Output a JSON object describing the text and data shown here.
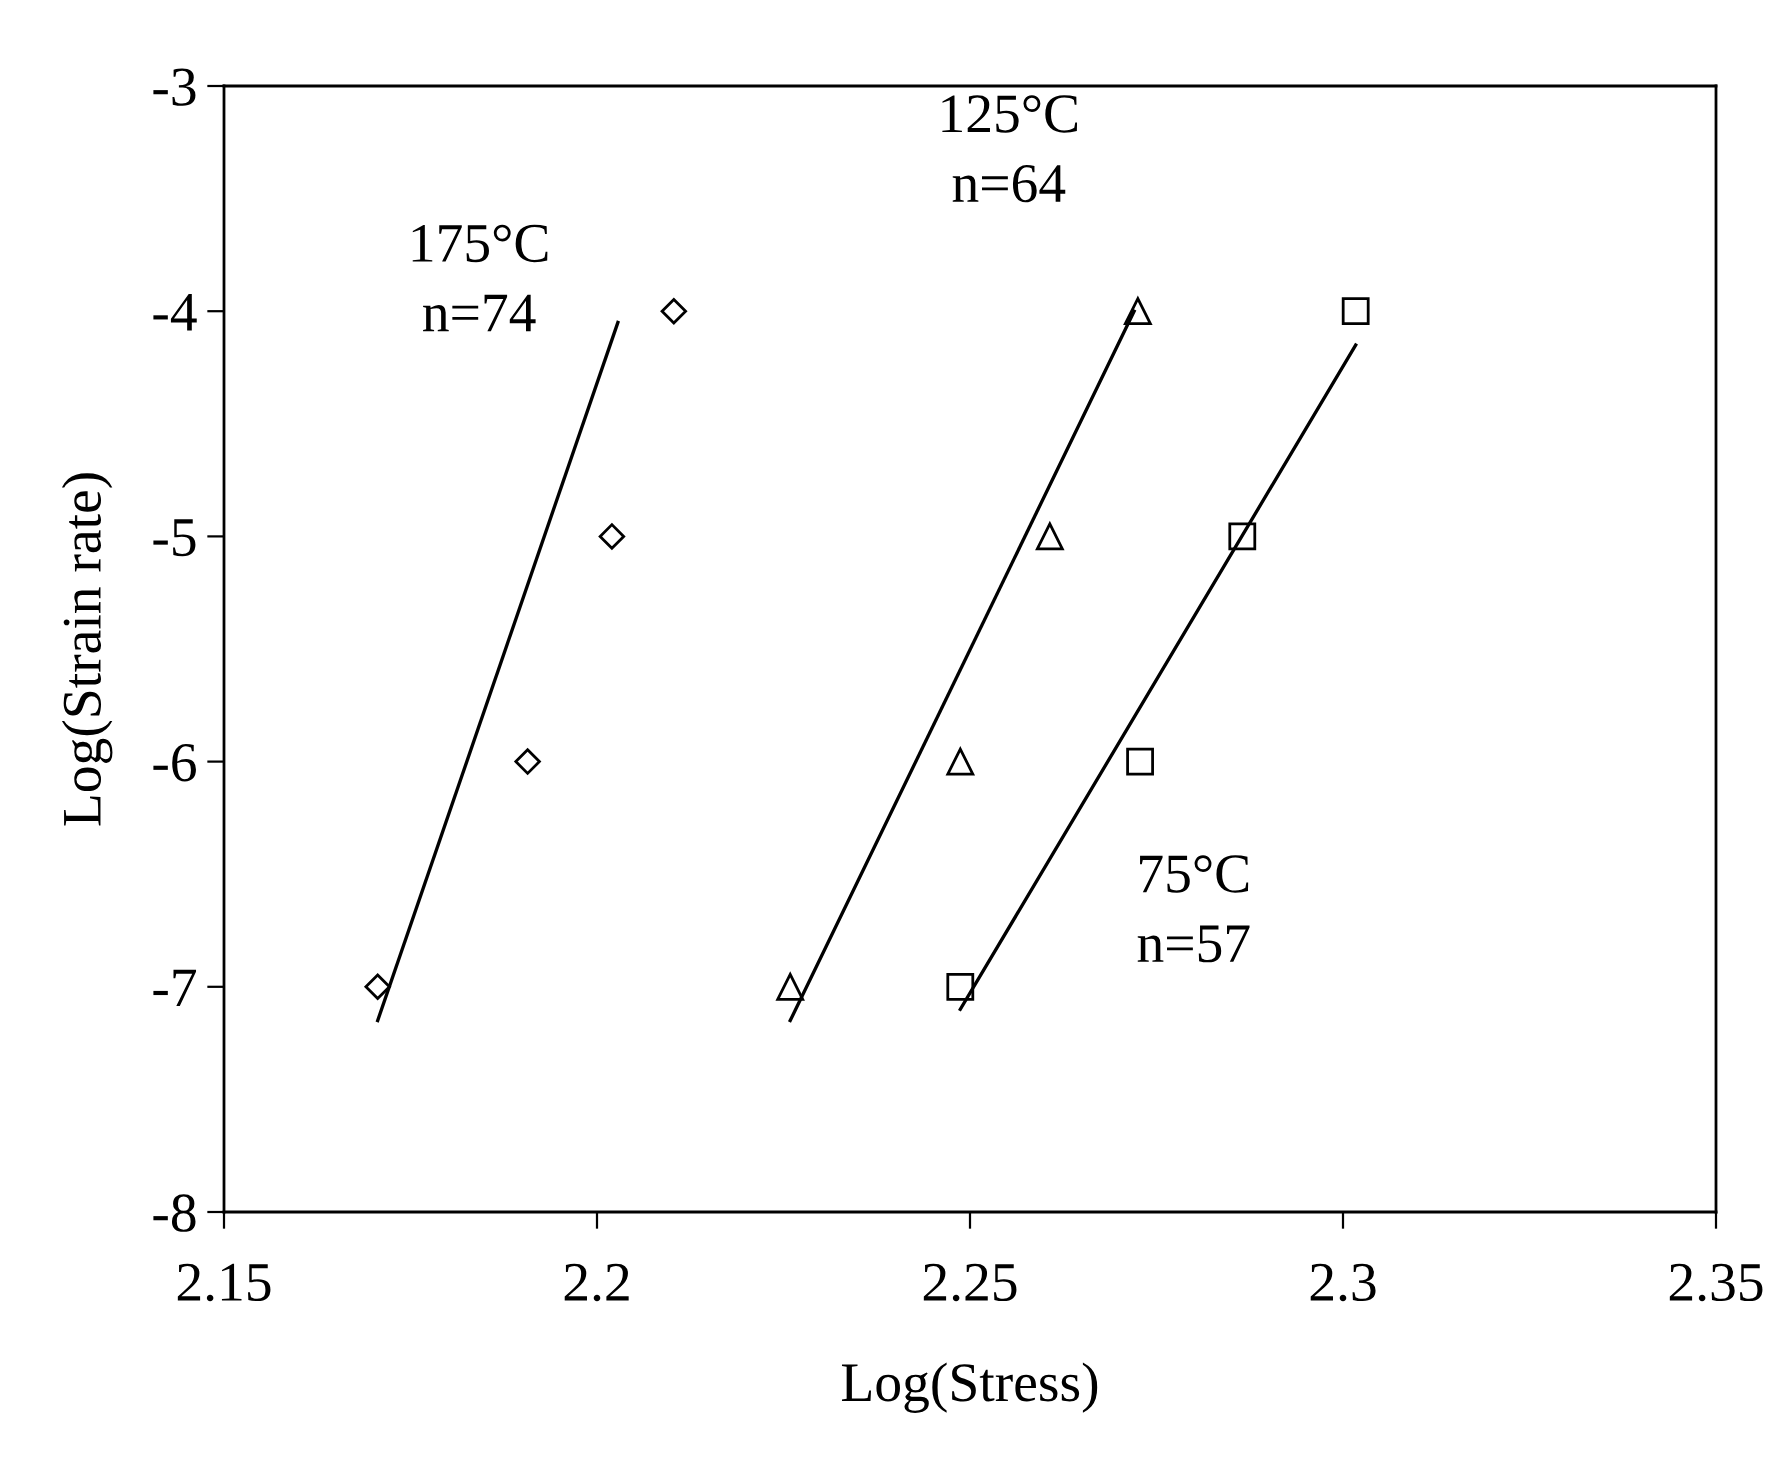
{
  "chart_data": {
    "type": "scatter",
    "xlabel": "Log(Stress)",
    "ylabel": "Log(Strain rate)",
    "xlim": [
      2.15,
      2.35
    ],
    "xticks": [
      2.15,
      2.2,
      2.25,
      2.3,
      2.35
    ],
    "ylim": [
      -8,
      -3
    ],
    "yticks": [
      -8,
      -7,
      -6,
      -5,
      -4,
      -3
    ],
    "grid": false,
    "series": [
      {
        "marker": "diamond",
        "color": "#000000",
        "x": [
          2.1706,
          2.1907,
          2.202,
          2.2103
        ],
        "values": [
          -7,
          -6,
          -5,
          -4
        ]
      },
      {
        "type": "line",
        "marker": "none",
        "color": "#000000",
        "x": [
          2.1706,
          2.2028
        ],
        "values": [
          -7.15,
          -4.05
        ]
      },
      {
        "marker": "triangle",
        "color": "#000000",
        "x": [
          2.2259,
          2.2487,
          2.2607,
          2.2725
        ],
        "values": [
          -7,
          -6,
          -5,
          -4
        ]
      },
      {
        "type": "line",
        "marker": "none",
        "color": "#000000",
        "x": [
          2.2259,
          2.272
        ],
        "values": [
          -7.15,
          -4.0
        ]
      },
      {
        "marker": "square",
        "color": "#000000",
        "x": [
          2.2487,
          2.2728,
          2.2865,
          2.3017
        ],
        "values": [
          -7,
          -6,
          -5,
          -4
        ]
      },
      {
        "type": "line",
        "marker": "none",
        "color": "#000000",
        "x": [
          2.2487,
          2.3017
        ],
        "values": [
          -7.1,
          -4.15
        ]
      }
    ],
    "annotations": [
      "175°C\nn=74",
      "125°C\nn=64",
      "75°C\nn=57"
    ]
  }
}
